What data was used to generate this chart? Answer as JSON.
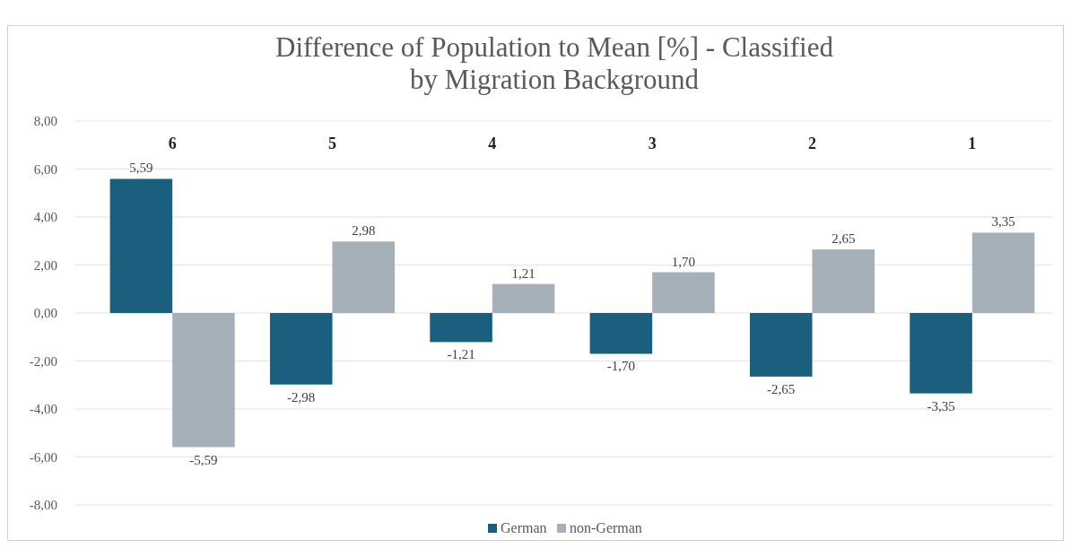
{
  "chart_data": {
    "type": "bar",
    "title": "Difference of Population to Mean [%] - Classified by Migration Background",
    "categories": [
      "6",
      "5",
      "4",
      "3",
      "2",
      "1"
    ],
    "series": [
      {
        "name": "German",
        "color": "#1b5f7e",
        "values": [
          5.59,
          -2.98,
          -1.21,
          -1.7,
          -2.65,
          -3.35
        ],
        "value_labels": [
          "5,59",
          "-2,98",
          "-1,21",
          "-1,70",
          "-2,65",
          "-3,35"
        ]
      },
      {
        "name": "non-German",
        "color": "#a5b0b9",
        "values": [
          -5.59,
          2.98,
          1.21,
          1.7,
          2.65,
          3.35
        ],
        "value_labels": [
          "-5,59",
          "2,98",
          "1,21",
          "1,70",
          "2,65",
          "3,35"
        ]
      }
    ],
    "ylim": [
      -8,
      8
    ],
    "yticks": [
      {
        "value": -8,
        "label": "-8,00"
      },
      {
        "value": -6,
        "label": "-6,00"
      },
      {
        "value": -4,
        "label": "-4,00"
      },
      {
        "value": -2,
        "label": "-2,00"
      },
      {
        "value": 0,
        "label": "0,00"
      },
      {
        "value": 2,
        "label": "2,00"
      },
      {
        "value": 4,
        "label": "4,00"
      },
      {
        "value": 6,
        "label": "6,00"
      },
      {
        "value": 8,
        "label": "8,00"
      }
    ],
    "grid": "y",
    "legend": "bottom"
  }
}
